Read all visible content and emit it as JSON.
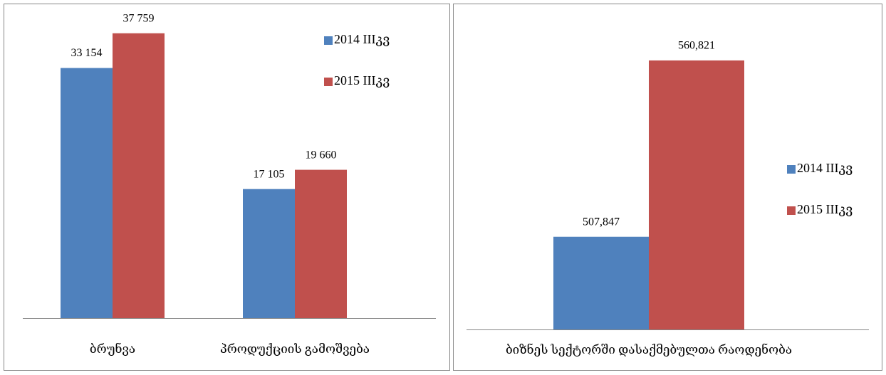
{
  "chart_data": [
    {
      "type": "bar",
      "categories": [
        "ბრუნვა",
        "პროდუქციის გამოშვება"
      ],
      "series": [
        {
          "name": "2014 IIIკვ",
          "color": "#4f81bd",
          "values": [
            33154,
            17105
          ],
          "value_labels": [
            "33 154",
            "17 105"
          ]
        },
        {
          "name": "2015 IIIკვ",
          "color": "#c0504d",
          "values": [
            37759,
            19660
          ],
          "value_labels": [
            "37 759",
            "19 660"
          ]
        }
      ],
      "ylim": [
        0,
        40000
      ]
    },
    {
      "type": "bar",
      "categories": [
        "ბიზნეს სექტორში დასაქმებულთა რაოდენობა"
      ],
      "series": [
        {
          "name": "2014 IIIკვ",
          "color": "#4f81bd",
          "values": [
            507847
          ],
          "value_labels": [
            "507,847"
          ]
        },
        {
          "name": "2015 IIIკვ",
          "color": "#c0504d",
          "values": [
            560821
          ],
          "value_labels": [
            "560,821"
          ]
        }
      ],
      "ylim": [
        480000,
        570000
      ]
    }
  ]
}
